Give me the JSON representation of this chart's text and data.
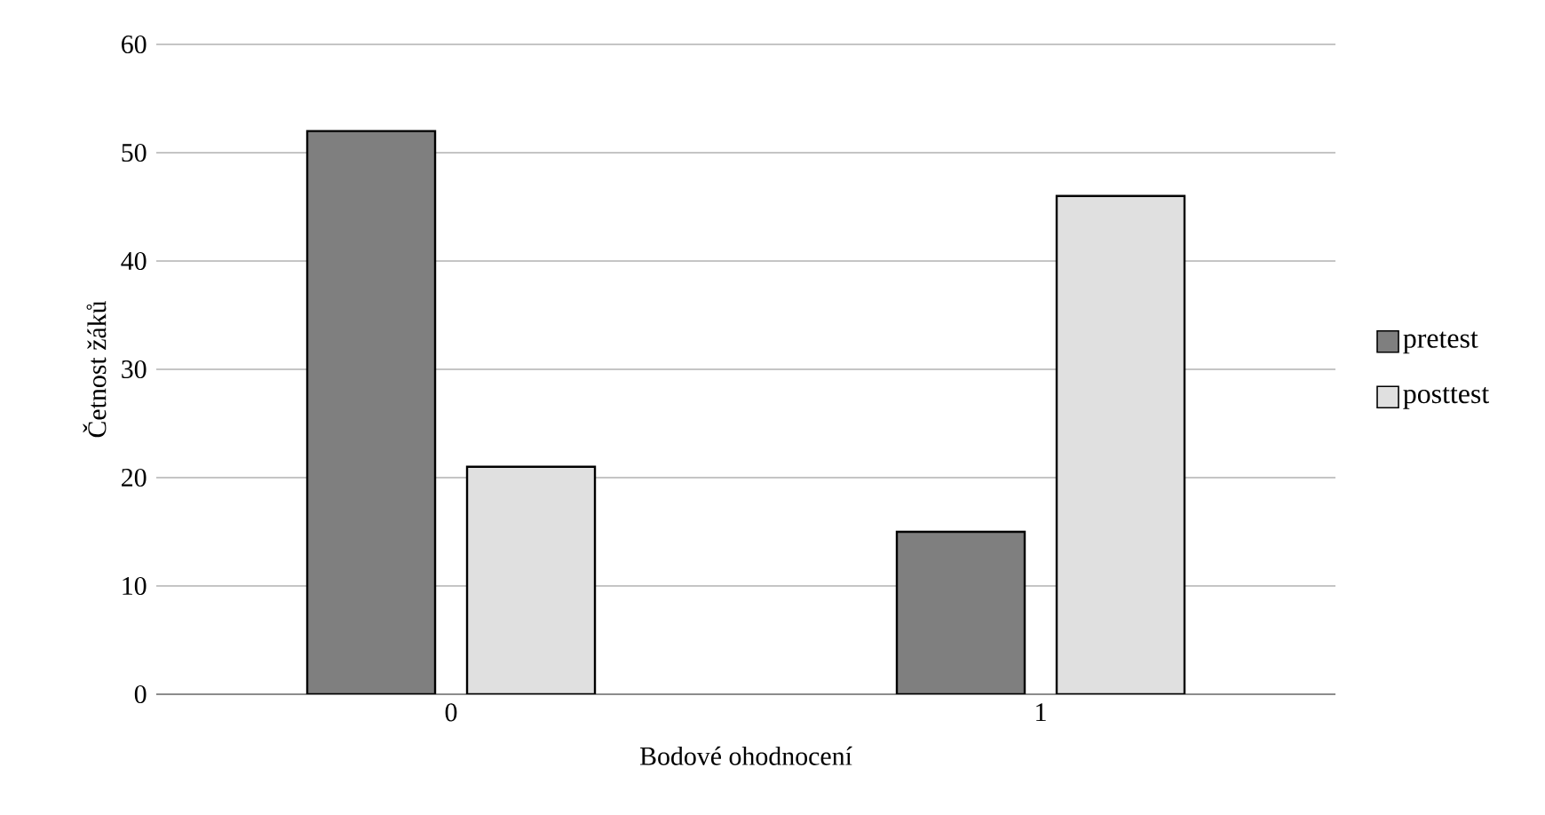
{
  "chart_data": {
    "type": "bar",
    "xlabel": "Bodové ohodnocení",
    "ylabel": "Četnost žáků",
    "categories": [
      "0",
      "1"
    ],
    "series": [
      {
        "name": "pretest",
        "color": "#7f7f7f",
        "values": [
          52,
          15
        ]
      },
      {
        "name": "posttest",
        "color": "#e0e0e0",
        "values": [
          21,
          46
        ]
      }
    ],
    "ylim": [
      0,
      60
    ],
    "yticks": [
      0,
      10,
      20,
      30,
      40,
      50,
      60
    ],
    "grid": "y",
    "legend": "right"
  }
}
